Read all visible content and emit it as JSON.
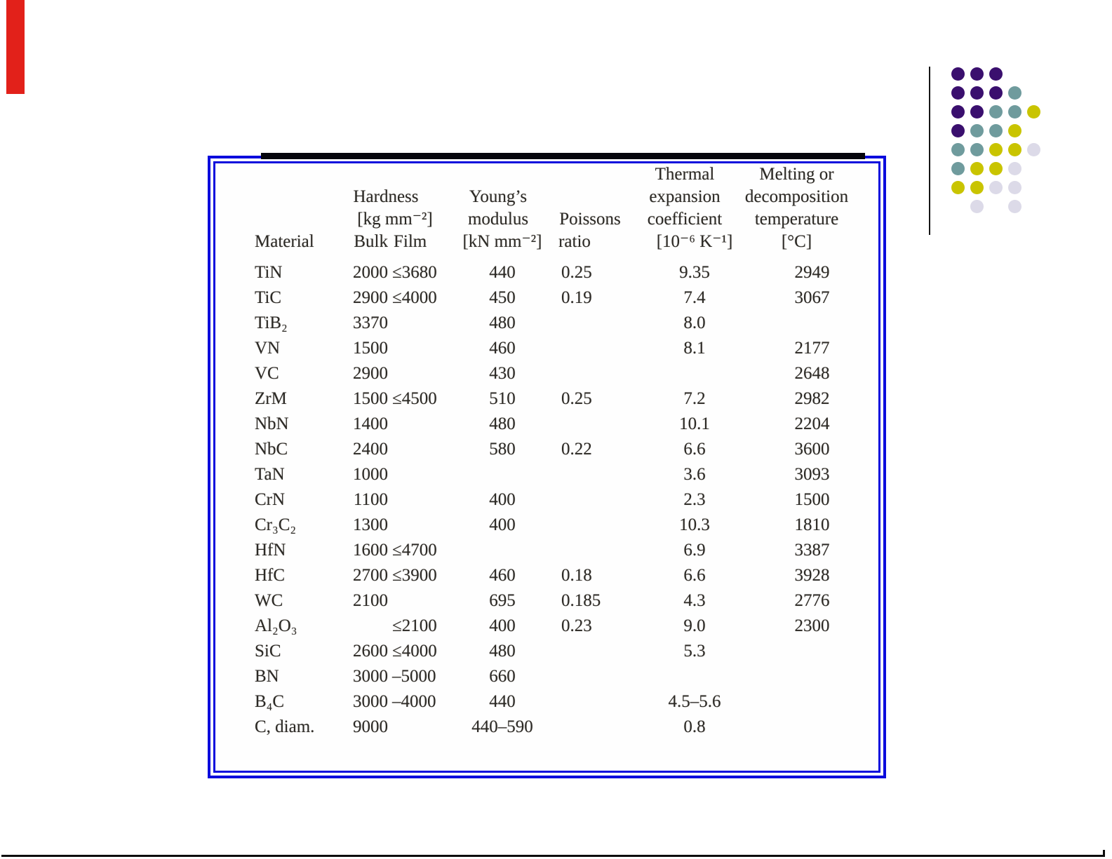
{
  "decor": {
    "red_bar_color": "#e2211a",
    "frame_border_color": "#0b0bdd",
    "top_rule_color": "#06060d",
    "vertical_line_color": "#161616",
    "bottom_line_color": "#0d0d0d",
    "dot_colors": {
      "P": "#3a0f6e",
      "T": "#6f9b9d",
      "Y": "#c9c400",
      "L": "#dcdae8"
    },
    "dot_grid": [
      [
        "P",
        "P",
        "P",
        "",
        ""
      ],
      [
        "P",
        "P",
        "P",
        "T",
        ""
      ],
      [
        "P",
        "P",
        "T",
        "T",
        "Y"
      ],
      [
        "P",
        "T",
        "T",
        "Y",
        ""
      ],
      [
        "T",
        "T",
        "Y",
        "Y",
        "L"
      ],
      [
        "T",
        "Y",
        "Y",
        "L",
        ""
      ],
      [
        "Y",
        "Y",
        "L",
        "L",
        ""
      ],
      [
        "",
        "L",
        "",
        "L",
        ""
      ]
    ]
  },
  "table": {
    "header": {
      "thermal_l1": "Thermal",
      "melting_l1": "Melting or",
      "hardness_l2": "Hardness",
      "youngs_l2": "Young’s",
      "thermal_l2": "expansion",
      "melting_l2": "decomposition",
      "hardness_l3": "[kg mm⁻²]",
      "youngs_l3": "modulus",
      "poisson_l3": "Poissons",
      "thermal_l3": "coefficient",
      "melting_l3": "temperature",
      "material_l4": "Material",
      "bulk_l4": "Bulk",
      "film_l4": "Film",
      "youngs_l4": "[kN mm⁻²]",
      "poisson_l4": "ratio",
      "thermal_l4": "[10⁻⁶ K⁻¹]",
      "melting_l4": "[°C]"
    },
    "rows": [
      {
        "material": "TiN",
        "bulk": "2000",
        "film": "≤3680",
        "youngs": "440",
        "poisson": "0.25",
        "thermal": "9.35",
        "melting": "2949"
      },
      {
        "material": "TiC",
        "bulk": "2900",
        "film": "≤4000",
        "youngs": "450",
        "poisson": "0.19",
        "thermal": "7.4",
        "melting": "3067"
      },
      {
        "material": "TiB₂",
        "bulk": "3370",
        "film": "",
        "youngs": "480",
        "poisson": "",
        "thermal": "8.0",
        "melting": ""
      },
      {
        "material": "VN",
        "bulk": "1500",
        "film": "",
        "youngs": "460",
        "poisson": "",
        "thermal": "8.1",
        "melting": "2177"
      },
      {
        "material": "VC",
        "bulk": "2900",
        "film": "",
        "youngs": "430",
        "poisson": "",
        "thermal": "",
        "melting": "2648"
      },
      {
        "material": "ZrM",
        "bulk": "1500",
        "film": "≤4500",
        "youngs": "510",
        "poisson": "0.25",
        "thermal": "7.2",
        "melting": "2982"
      },
      {
        "material": "NbN",
        "bulk": "1400",
        "film": "",
        "youngs": "480",
        "poisson": "",
        "thermal": "10.1",
        "melting": "2204"
      },
      {
        "material": "NbC",
        "bulk": "2400",
        "film": "",
        "youngs": "580",
        "poisson": "0.22",
        "thermal": "6.6",
        "melting": "3600"
      },
      {
        "material": "TaN",
        "bulk": "1000",
        "film": "",
        "youngs": "",
        "poisson": "",
        "thermal": "3.6",
        "melting": "3093"
      },
      {
        "material": "CrN",
        "bulk": "1100",
        "film": "",
        "youngs": "400",
        "poisson": "",
        "thermal": "2.3",
        "melting": "1500"
      },
      {
        "material": "Cr₃C₂",
        "bulk": "1300",
        "film": "",
        "youngs": "400",
        "poisson": "",
        "thermal": "10.3",
        "melting": "1810"
      },
      {
        "material": "HfN",
        "bulk": "1600",
        "film": "≤4700",
        "youngs": "",
        "poisson": "",
        "thermal": "6.9",
        "melting": "3387"
      },
      {
        "material": "HfC",
        "bulk": "2700",
        "film": "≤3900",
        "youngs": "460",
        "poisson": "0.18",
        "thermal": "6.6",
        "melting": "3928"
      },
      {
        "material": "WC",
        "bulk": "2100",
        "film": "",
        "youngs": "695",
        "poisson": "0.185",
        "thermal": "4.3",
        "melting": "2776"
      },
      {
        "material": "Al₂O₃",
        "bulk": "",
        "film": "≤2100",
        "youngs": "400",
        "poisson": "0.23",
        "thermal": "9.0",
        "melting": "2300"
      },
      {
        "material": "SiC",
        "bulk": "2600",
        "film": "≤4000",
        "youngs": "480",
        "poisson": "",
        "thermal": "5.3",
        "melting": ""
      },
      {
        "material": "BN",
        "bulk": "3000",
        "film": "–5000",
        "youngs": "660",
        "poisson": "",
        "thermal": "",
        "melting": ""
      },
      {
        "material": "B₄C",
        "bulk": "3000",
        "film": "–4000",
        "youngs": "440",
        "poisson": "",
        "thermal": "4.5–5.6",
        "melting": ""
      },
      {
        "material": "C, diam.",
        "bulk": "9000",
        "film": "",
        "youngs": "440–590",
        "poisson": "",
        "thermal": "0.8",
        "melting": ""
      }
    ]
  }
}
